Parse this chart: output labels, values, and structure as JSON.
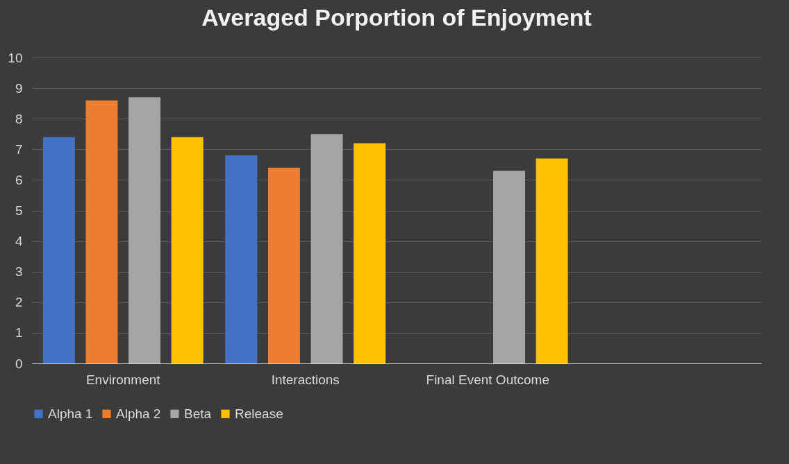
{
  "chart_data": {
    "type": "bar",
    "title": "Averaged Porportion of Enjoyment",
    "categories": [
      "Environment",
      "Interactions",
      "Final Event Outcome",
      null
    ],
    "series": [
      {
        "name": "Alpha 1",
        "color": "#4472c4",
        "values": [
          7.4,
          6.8,
          null,
          null
        ]
      },
      {
        "name": "Alpha 2",
        "color": "#ed7d31",
        "values": [
          8.6,
          6.4,
          null,
          null
        ]
      },
      {
        "name": "Beta",
        "color": "#a5a5a5",
        "values": [
          8.7,
          7.5,
          6.3,
          null
        ]
      },
      {
        "name": "Release",
        "color": "#ffc000",
        "values": [
          7.4,
          7.2,
          6.7,
          null
        ]
      }
    ],
    "ylim": [
      0,
      10
    ],
    "yticks": [
      0,
      1,
      2,
      3,
      4,
      5,
      6,
      7,
      8,
      9,
      10
    ],
    "grid": "y",
    "legend": "bottom"
  }
}
